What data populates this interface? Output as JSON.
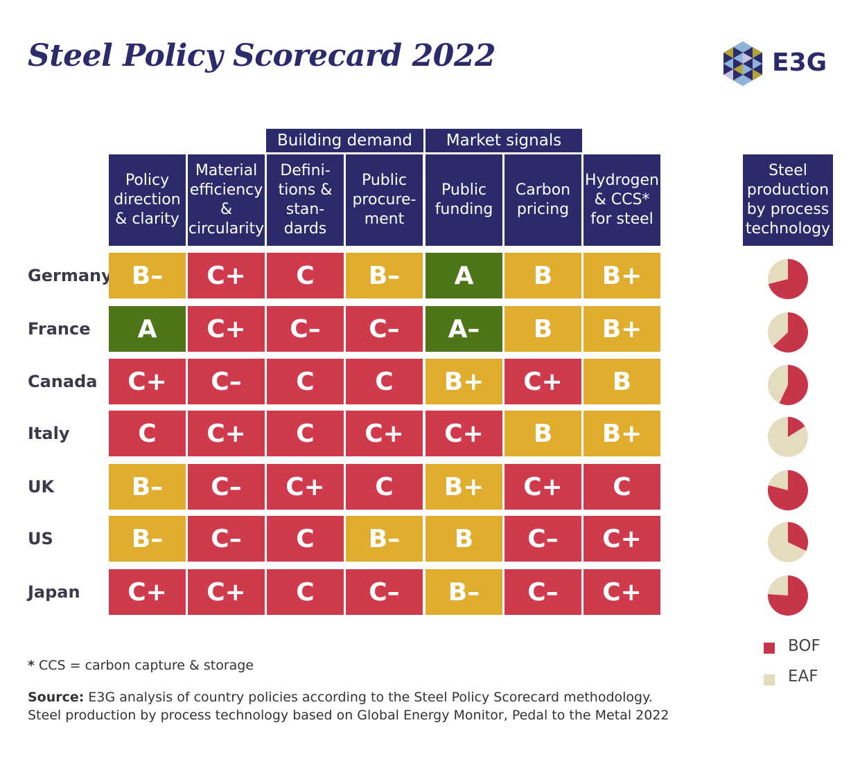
{
  "title": "Steel Policy Scorecard 2022",
  "logo_text": "E3G",
  "colors": {
    "navy": "#2b2a6b",
    "grade_A": "#4e7518",
    "grade_B": "#e0ad2e",
    "grade_C": "#cf3a4d",
    "bof": "#c7354a",
    "eaf": "#e5dcc0"
  },
  "group_headers": [
    "Building demand",
    "Market signals"
  ],
  "column_headers": [
    "Policy\ndirection\n& clarity",
    "Material\nefficiency\n&\ncircularity",
    "Defini-\ntions &\nstan-\ndards",
    "Public\nprocure-\nment",
    "Public\nfunding",
    "Carbon\npricing",
    "Hydrogen\n& CCS*\nfor steel"
  ],
  "pie_header": "Steel\nproduction\nby process\ntechnology",
  "chart_data": {
    "type": "table",
    "rows": [
      {
        "country": "Germany",
        "grades": [
          "B–",
          "C+",
          "C",
          "B–",
          "A",
          "B",
          "B+"
        ],
        "bof_share": 0.71
      },
      {
        "country": "France",
        "grades": [
          "A",
          "C+",
          "C–",
          "C–",
          "A–",
          "B",
          "B+"
        ],
        "bof_share": 0.63
      },
      {
        "country": "Canada",
        "grades": [
          "C+",
          "C–",
          "C",
          "C",
          "B+",
          "C+",
          "B"
        ],
        "bof_share": 0.57
      },
      {
        "country": "Italy",
        "grades": [
          "C",
          "C+",
          "C",
          "C+",
          "C+",
          "B",
          "B+"
        ],
        "bof_share": 0.16
      },
      {
        "country": "UK",
        "grades": [
          "B–",
          "C–",
          "C+",
          "C",
          "B+",
          "C+",
          "C"
        ],
        "bof_share": 0.79
      },
      {
        "country": "US",
        "grades": [
          "B–",
          "C–",
          "C",
          "B–",
          "B",
          "C–",
          "C+"
        ],
        "bof_share": 0.32
      },
      {
        "country": "Japan",
        "grades": [
          "C+",
          "C+",
          "C",
          "C–",
          "B–",
          "C–",
          "C+"
        ],
        "bof_share": 0.76
      }
    ],
    "legend": [
      "BOF",
      "EAF"
    ]
  },
  "footnote": {
    "mark": "*",
    "text": " CCS = carbon capture & storage"
  },
  "source": {
    "label": "Source:",
    "line1": " E3G analysis of country policies according to the Steel Policy Scorecard methodology.",
    "line2": "Steel production by process technology based on Global Energy Monitor, Pedal to the Metal 2022"
  }
}
